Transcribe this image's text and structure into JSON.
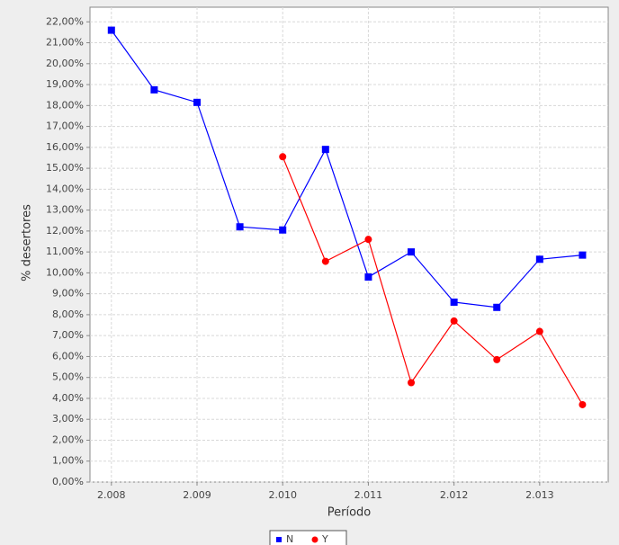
{
  "chart_data": {
    "type": "line",
    "x_label": "Período",
    "y_label": "% desertores",
    "x": [
      2008,
      2008.5,
      2009,
      2009.5,
      2010,
      2010.5,
      2011,
      2011.5,
      2012,
      2012.5,
      2013,
      2013.5
    ],
    "series": [
      {
        "name": "N",
        "color": "#0000ff",
        "marker": "square",
        "values": [
          21.6,
          18.75,
          18.15,
          12.2,
          12.05,
          15.9,
          9.8,
          11.0,
          8.6,
          8.35,
          10.65,
          10.85
        ]
      },
      {
        "name": "Y",
        "color": "#ff0000",
        "marker": "circle",
        "values": [
          null,
          null,
          null,
          null,
          15.55,
          10.55,
          11.6,
          4.75,
          7.7,
          5.85,
          7.2,
          3.7
        ]
      }
    ],
    "xlim": [
      2007.75,
      2013.8
    ],
    "xticks": [
      {
        "value": 2008,
        "label": "2.008"
      },
      {
        "value": 2009,
        "label": "2.009"
      },
      {
        "value": 2010,
        "label": "2.010"
      },
      {
        "value": 2011,
        "label": "2.011"
      },
      {
        "value": 2012,
        "label": "2.012"
      },
      {
        "value": 2013,
        "label": "2.013"
      }
    ],
    "ylim": [
      0,
      22.7
    ],
    "yticks": [
      {
        "value": 0,
        "label": "0,00%"
      },
      {
        "value": 1,
        "label": "1,00%"
      },
      {
        "value": 2,
        "label": "2,00%"
      },
      {
        "value": 3,
        "label": "3,00%"
      },
      {
        "value": 4,
        "label": "4,00%"
      },
      {
        "value": 5,
        "label": "5,00%"
      },
      {
        "value": 6,
        "label": "6,00%"
      },
      {
        "value": 7,
        "label": "7,00%"
      },
      {
        "value": 8,
        "label": "8,00%"
      },
      {
        "value": 9,
        "label": "9,00%"
      },
      {
        "value": 10,
        "label": "10,00%"
      },
      {
        "value": 11,
        "label": "11,00%"
      },
      {
        "value": 12,
        "label": "12,00%"
      },
      {
        "value": 13,
        "label": "13,00%"
      },
      {
        "value": 14,
        "label": "14,00%"
      },
      {
        "value": 15,
        "label": "15,00%"
      },
      {
        "value": 16,
        "label": "16,00%"
      },
      {
        "value": 17,
        "label": "17,00%"
      },
      {
        "value": 18,
        "label": "18,00%"
      },
      {
        "value": 19,
        "label": "19,00%"
      },
      {
        "value": 20,
        "label": "20,00%"
      },
      {
        "value": 21,
        "label": "21,00%"
      },
      {
        "value": 22,
        "label": "22,00%"
      }
    ],
    "grid": true,
    "legend": "bottom"
  }
}
